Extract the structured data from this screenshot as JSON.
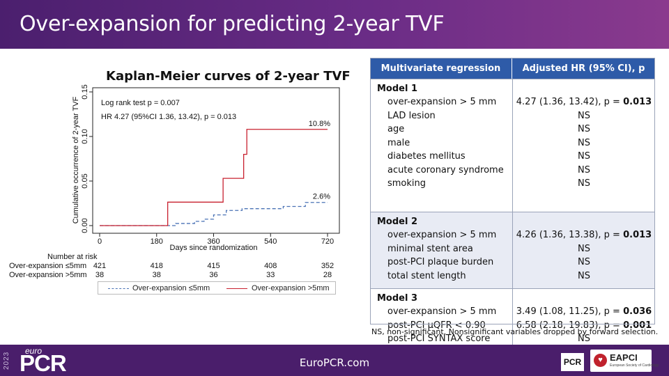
{
  "slide": {
    "title": "Over-expansion for predicting 2-year TVF",
    "footer_url": "EuroPCR.com",
    "footer_year": "2023",
    "footer_logo_small": "euro",
    "footer_logo_big": "PCR",
    "logo_pcr": "PCR",
    "logo_eapci": "EAPCI",
    "logo_eapci_sub": "European Society of Cardiology"
  },
  "chart_data": {
    "type": "line",
    "title": "Kaplan-Meier curves of 2-year TVF",
    "xlabel": "Days since randomization",
    "ylabel": "Cumulative occurrence of 2-year TVF",
    "xlim": [
      0,
      720
    ],
    "ylim": [
      0,
      0.15
    ],
    "xticks": [
      "0",
      "180",
      "360",
      "540",
      "720"
    ],
    "xtick_values": [
      0,
      180,
      360,
      540,
      720
    ],
    "yticks": [
      "0.00",
      "0.05",
      "0.10",
      "0.15"
    ],
    "ytick_values": [
      0,
      0.05,
      0.1,
      0.15
    ],
    "annotations": [
      "Log rank test p = 0.007",
      "HR 4.27 (95%CI 1.36, 13.42), p = 0.013"
    ],
    "series": [
      {
        "name": "Over-expansion ≤5mm",
        "color": "#4a72b5",
        "style": "dashed",
        "end_label": "2.6%",
        "x": [
          0,
          210,
          240,
          300,
          330,
          360,
          400,
          450,
          500,
          580,
          650,
          720
        ],
        "y": [
          0,
          0,
          0.0024,
          0.0048,
          0.0072,
          0.012,
          0.017,
          0.019,
          0.019,
          0.0215,
          0.026,
          0.026
        ]
      },
      {
        "name": "Over-expansion >5mm",
        "color": "#c8202f",
        "style": "solid",
        "end_label": "10.8%",
        "x": [
          0,
          215,
          390,
          455,
          465,
          720
        ],
        "y": [
          0,
          0.0263,
          0.053,
          0.08,
          0.108,
          0.108
        ]
      }
    ],
    "risk_table": {
      "header": "Number at risk",
      "rows": [
        {
          "label": "Over-expansion ≤5mm",
          "values": [
            "421",
            "418",
            "415",
            "408",
            "352"
          ]
        },
        {
          "label": "Over-expansion >5mm",
          "values": [
            "38",
            "38",
            "36",
            "33",
            "28"
          ]
        }
      ]
    }
  },
  "table": {
    "col1": "Multivariate regression",
    "col2": "Adjusted HR (95% CI), p",
    "footnote": "NS, non-significant. Nonsignificant variables dropped by forward selection.",
    "models": [
      {
        "title": "Model 1",
        "rows": [
          {
            "var": "over-expansion > 5 mm",
            "hr": "4.27 (1.36, 13.42), p = ",
            "p": "0.013"
          },
          {
            "var": "LAD lesion",
            "hr": "NS",
            "p": ""
          },
          {
            "var": "age",
            "hr": "NS",
            "p": ""
          },
          {
            "var": "male",
            "hr": "NS",
            "p": ""
          },
          {
            "var": "diabetes mellitus",
            "hr": "NS",
            "p": ""
          },
          {
            "var": "acute coronary syndrome",
            "hr": "NS",
            "p": ""
          },
          {
            "var": "smoking",
            "hr": "NS",
            "p": ""
          }
        ]
      },
      {
        "title": "Model 2",
        "rows": [
          {
            "var": "over-expansion > 5 mm",
            "hr": "4.26 (1.36, 13.38), p = ",
            "p": "0.013"
          },
          {
            "var": "minimal stent area",
            "hr": "NS",
            "p": ""
          },
          {
            "var": "post-PCI plaque burden",
            "hr": "NS",
            "p": ""
          },
          {
            "var": "total stent length",
            "hr": "NS",
            "p": ""
          }
        ]
      },
      {
        "title": "Model 3",
        "rows": [
          {
            "var": "over-expansion > 5 mm",
            "hr": "3.49 (1.08, 11.25), p = ",
            "p": "0.036"
          },
          {
            "var": "post-PCI μQFR < 0.90",
            "hr": "6.58 (2.18, 19.83), p = ",
            "p": "0.001"
          },
          {
            "var": "post-PCI SYNTAX score",
            "hr": "NS",
            "p": ""
          }
        ]
      }
    ]
  }
}
